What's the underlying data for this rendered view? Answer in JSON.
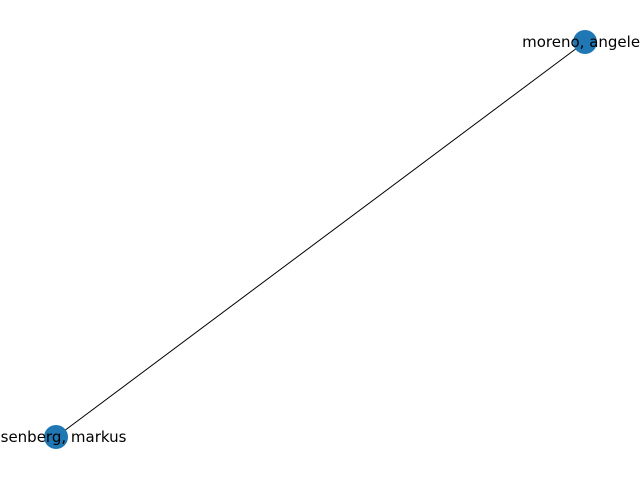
{
  "graph": {
    "node_color": "#1f77b4",
    "edge_color": "#000000",
    "nodes": [
      {
        "id": "n0",
        "label": "moreno, angeles"
      },
      {
        "id": "n1",
        "label": "rosenberg, markus"
      }
    ],
    "edges": [
      {
        "source": "n0",
        "target": "n1"
      }
    ]
  }
}
